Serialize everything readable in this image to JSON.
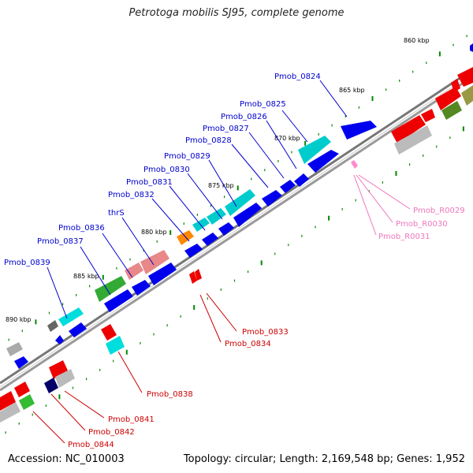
{
  "title": "Petrotoga mobilis SJ95, complete genome",
  "footer": {
    "accession": "Accession: NC_010003",
    "summary": "Topology: circular; Length: 2,169,548 bp; Genes: 1,952"
  },
  "colors": {
    "backbone": "#888888",
    "forward_gene": "#0000ee",
    "reverse_gene": "#ee0000",
    "rna": "#ff88cc",
    "label_forward": "#0000cc",
    "label_reverse": "#cc0000",
    "label_rna": "#ee77bb",
    "tick": "#008800"
  },
  "scale_markers": [
    {
      "id": "860",
      "text": "860 kbp"
    },
    {
      "id": "865",
      "text": "865 kbp"
    },
    {
      "id": "870",
      "text": "870 kbp"
    },
    {
      "id": "875",
      "text": "875 kbp"
    },
    {
      "id": "880",
      "text": "880 kbp"
    },
    {
      "id": "885",
      "text": "885 kbp"
    },
    {
      "id": "890",
      "text": "890 kbp"
    }
  ],
  "forward_labels": [
    {
      "id": "0824",
      "text": "Pmob_0824"
    },
    {
      "id": "0825",
      "text": "Pmob_0825"
    },
    {
      "id": "0826",
      "text": "Pmob_0826"
    },
    {
      "id": "0827",
      "text": "Pmob_0827"
    },
    {
      "id": "0828",
      "text": "Pmob_0828"
    },
    {
      "id": "0829",
      "text": "Pmob_0829"
    },
    {
      "id": "0830",
      "text": "Pmob_0830"
    },
    {
      "id": "0831",
      "text": "Pmob_0831"
    },
    {
      "id": "0832",
      "text": "Pmob_0832"
    },
    {
      "id": "thrS",
      "text": "thrS"
    },
    {
      "id": "0836",
      "text": "Pmob_0836"
    },
    {
      "id": "0837",
      "text": "Pmob_0837"
    },
    {
      "id": "0839",
      "text": "Pmob_0839"
    }
  ],
  "reverse_labels": [
    {
      "id": "0833",
      "text": "Pmob_0833"
    },
    {
      "id": "0834",
      "text": "Pmob_0834"
    },
    {
      "id": "0838",
      "text": "Pmob_0838"
    },
    {
      "id": "0841",
      "text": "Pmob_0841"
    },
    {
      "id": "0842",
      "text": "Pmob_0842"
    },
    {
      "id": "0844",
      "text": "Pmob_0844"
    }
  ],
  "rna_labels": [
    {
      "id": "R0029",
      "text": "Pmob_R0029"
    },
    {
      "id": "R0030",
      "text": "Pmob_R0030"
    },
    {
      "id": "R0031",
      "text": "Pmob_R0031"
    }
  ]
}
